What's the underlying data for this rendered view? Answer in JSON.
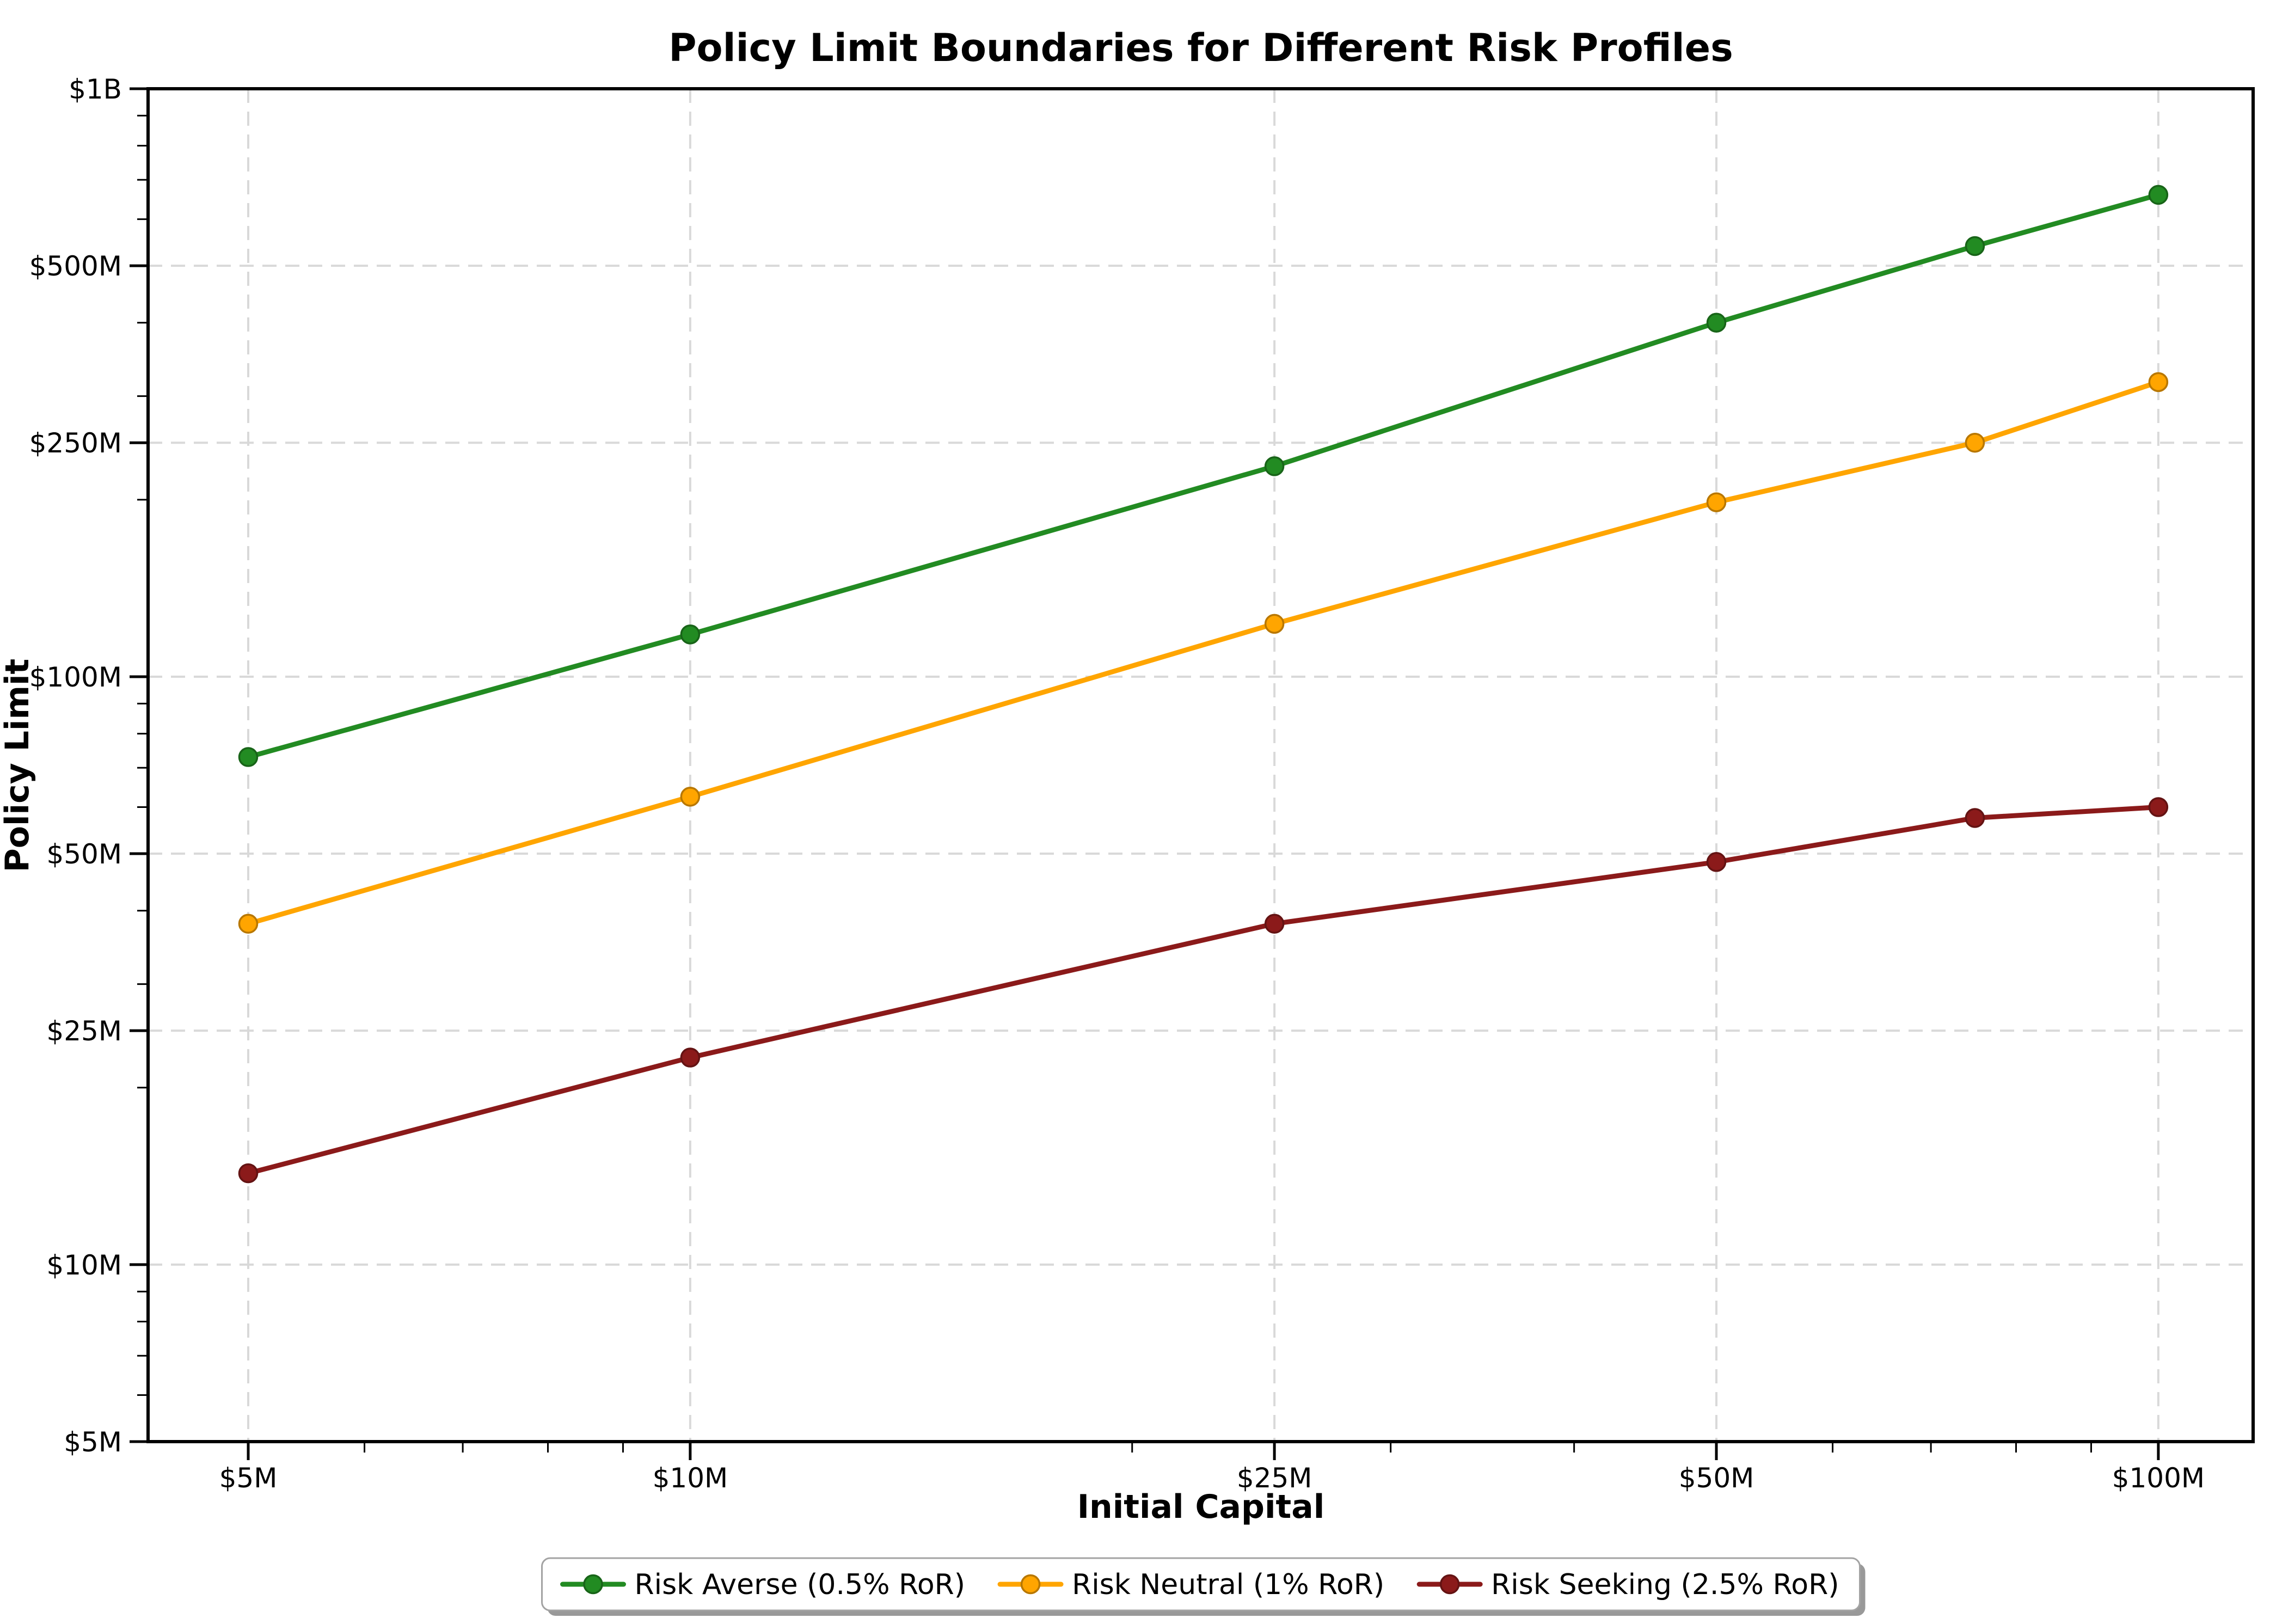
{
  "chart_data": {
    "type": "line",
    "title": "Policy Limit Boundaries for Different Risk Profiles",
    "xlabel": "Initial Capital",
    "ylabel": "Policy Limit",
    "x_scale": "log",
    "y_scale": "log",
    "unit": "USD millions",
    "x": [
      5,
      10,
      25,
      50,
      75,
      100
    ],
    "x_tick_values": [
      5,
      10,
      25,
      50,
      100
    ],
    "x_tick_labels": [
      "$5M",
      "$10M",
      "$25M",
      "$50M",
      "$100M"
    ],
    "y_tick_values": [
      5,
      10,
      25,
      50,
      100,
      250,
      500,
      1000
    ],
    "y_tick_labels": [
      "$5M",
      "$10M",
      "$25M",
      "$50M",
      "$100M",
      "$250M",
      "$500M",
      "$1B"
    ],
    "ylim": [
      5,
      1000
    ],
    "grid": "dashed major gridlines, both axes",
    "legend_position": "bottom-center",
    "series": [
      {
        "name": "Risk Averse (0.5% RoR)",
        "color": "#228B22",
        "values": [
          73,
          118,
          228,
          400,
          540,
          660
        ]
      },
      {
        "name": "Risk Neutral (1% RoR)",
        "color": "#FFA500",
        "values": [
          38,
          62.5,
          123,
          198,
          250,
          317
        ]
      },
      {
        "name": "Risk Seeking (2.5% RoR)",
        "color": "#8B1A1A",
        "values": [
          14.3,
          22.5,
          38,
          48.4,
          57.5,
          60
        ]
      }
    ],
    "colors": {
      "background": "#ffffff",
      "grid": "#d9d9d9",
      "spine": "#000000",
      "legend_edge": "#a3a3a3",
      "legend_shadow": "#999999",
      "text": "#000000"
    }
  }
}
